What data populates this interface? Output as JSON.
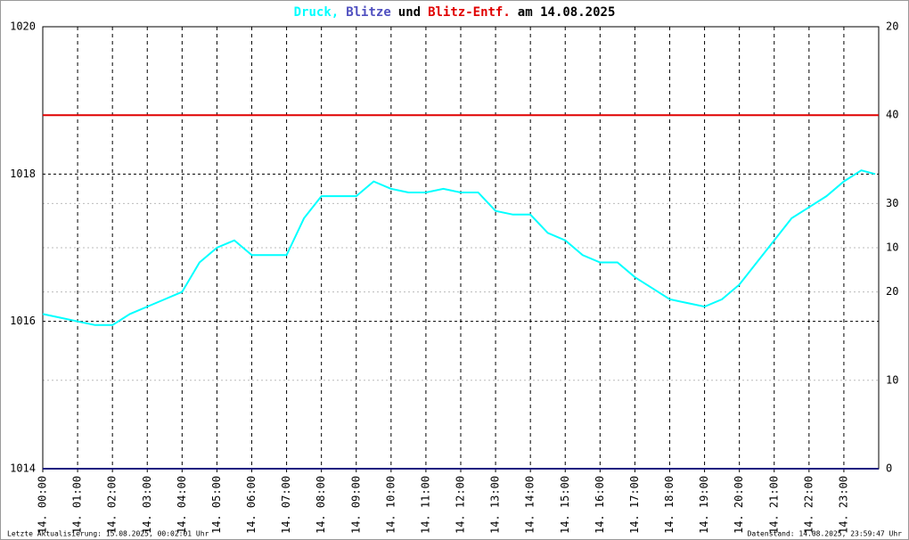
{
  "chart_data": {
    "type": "line",
    "title_parts": [
      "Druck,",
      "Blitze",
      "und",
      "Blitz-Entf.",
      "am 14.08.2025"
    ],
    "footer_left": "Letzte Aktualisierung: 15.08.2025, 00:02:01 Uhr",
    "footer_right": "Datenstand: 14.08.2025, 23:59:47 Uhr",
    "xlim": [
      0,
      24
    ],
    "xticks": [
      {
        "value": 0,
        "label": "14. 00:00"
      },
      {
        "value": 1,
        "label": "14. 01:00"
      },
      {
        "value": 2,
        "label": "14. 02:00"
      },
      {
        "value": 3,
        "label": "14. 03:00"
      },
      {
        "value": 4,
        "label": "14. 04:00"
      },
      {
        "value": 5,
        "label": "14. 05:00"
      },
      {
        "value": 6,
        "label": "14. 06:00"
      },
      {
        "value": 7,
        "label": "14. 07:00"
      },
      {
        "value": 8,
        "label": "14. 08:00"
      },
      {
        "value": 9,
        "label": "14. 09:00"
      },
      {
        "value": 10,
        "label": "14. 10:00"
      },
      {
        "value": 11,
        "label": "14. 11:00"
      },
      {
        "value": 12,
        "label": "14. 12:00"
      },
      {
        "value": 13,
        "label": "14. 13:00"
      },
      {
        "value": 14,
        "label": "14. 14:00"
      },
      {
        "value": 15,
        "label": "14. 15:00"
      },
      {
        "value": 16,
        "label": "14. 16:00"
      },
      {
        "value": 17,
        "label": "14. 17:00"
      },
      {
        "value": 18,
        "label": "14. 18:00"
      },
      {
        "value": 19,
        "label": "14. 19:00"
      },
      {
        "value": 20,
        "label": "14. 20:00"
      },
      {
        "value": 21,
        "label": "14. 21:00"
      },
      {
        "value": 22,
        "label": "14. 22:00"
      },
      {
        "value": 23,
        "label": "14. 23:00"
      }
    ],
    "ylim": [
      1014,
      1020
    ],
    "yticks": [
      1014,
      1016,
      1018,
      1020
    ],
    "y2lim": [
      0,
      50
    ],
    "y2ticks": [
      0,
      10,
      20,
      30,
      40
    ],
    "y3lim": [
      0,
      20
    ],
    "y3ticks": [
      10,
      20
    ],
    "grid": true,
    "series": [
      {
        "name": "Druck,",
        "color": "#00ffff",
        "axis": "y",
        "x": [
          0,
          0.5,
          1,
          1.5,
          2,
          2.5,
          3,
          3.5,
          4,
          4.5,
          5,
          5.5,
          6,
          6.5,
          7,
          7.5,
          8,
          8.5,
          9,
          9.5,
          10,
          10.5,
          11,
          11.5,
          12,
          12.5,
          13,
          13.5,
          14,
          14.5,
          15,
          15.5,
          16,
          16.5,
          17,
          17.5,
          18,
          18.5,
          19,
          19.5,
          20,
          20.5,
          21,
          21.5,
          22,
          22.5,
          23,
          23.5,
          23.9
        ],
        "values": [
          1016.1,
          1016.05,
          1016.0,
          1015.95,
          1015.95,
          1016.1,
          1016.2,
          1016.3,
          1016.4,
          1016.8,
          1017.0,
          1017.1,
          1016.9,
          1016.9,
          1016.9,
          1017.4,
          1017.7,
          1017.7,
          1017.7,
          1017.9,
          1017.8,
          1017.75,
          1017.75,
          1017.8,
          1017.75,
          1017.75,
          1017.5,
          1017.45,
          1017.45,
          1017.2,
          1017.1,
          1016.9,
          1016.8,
          1016.8,
          1016.6,
          1016.45,
          1016.3,
          1016.25,
          1016.2,
          1016.3,
          1016.5,
          1016.8,
          1017.1,
          1017.4,
          1017.55,
          1017.7,
          1017.9,
          1018.05,
          1018.0
        ]
      },
      {
        "name": "Blitze",
        "color": "#1a1a80",
        "axis": "y3",
        "x": [
          0,
          24
        ],
        "values": [
          0,
          0
        ]
      },
      {
        "name": "Blitz-Entf.",
        "color": "#e00000",
        "axis": "y2",
        "x": [
          0,
          24
        ],
        "values": [
          40,
          40
        ]
      }
    ]
  }
}
